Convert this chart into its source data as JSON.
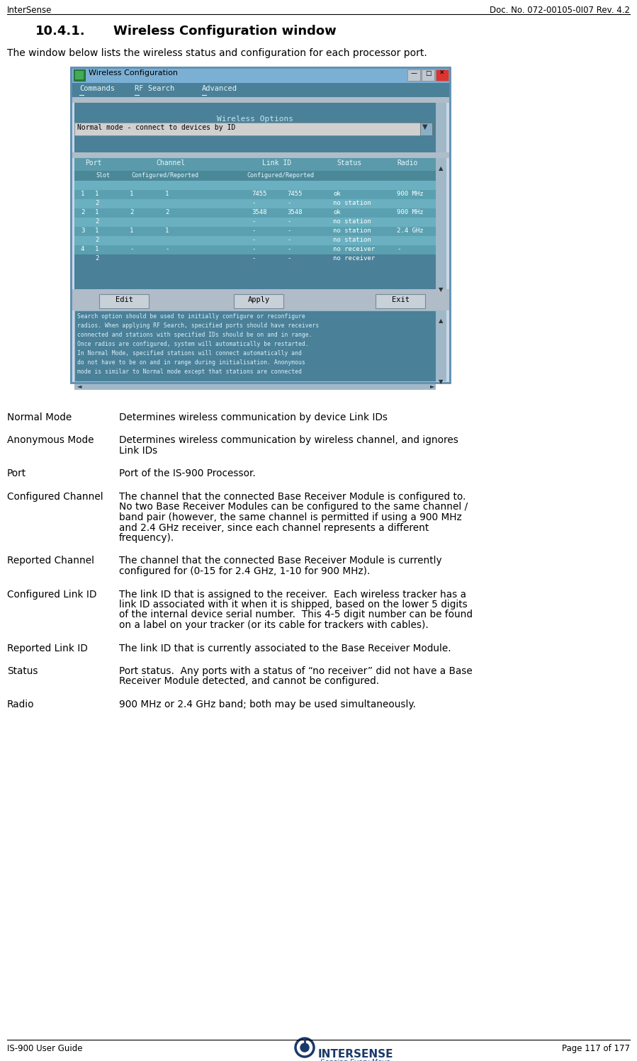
{
  "header_left": "InterSense",
  "header_right": "Doc. No. 072-00105-0I07 Rev. 4.2",
  "footer_left": "IS-900 User Guide",
  "footer_right": "Page 117 of 177",
  "bg_color": "#ffffff",
  "section_num": "10.4.1.",
  "section_title": "Wireless Configuration window",
  "intro_text": "The window below lists the wireless status and configuration for each processor port.",
  "terms": [
    {
      "term": "Normal Mode",
      "definition": "Determines wireless communication by device Link IDs"
    },
    {
      "term": "Anonymous Mode",
      "definition": "Determines wireless communication by wireless channel, and ignores\nLink IDs"
    },
    {
      "term": "Port",
      "definition": "Port of the IS-900 Processor."
    },
    {
      "term": "Configured Channel",
      "definition": "The channel that the connected Base Receiver Module is configured to.\nNo two Base Receiver Modules can be configured to the same channel /\nband pair (however, the same channel is permitted if using a 900 MHz\nand 2.4 GHz receiver, since each channel represents a different\nfrequency)."
    },
    {
      "term": "Reported Channel",
      "definition": "The channel that the connected Base Receiver Module is currently\nconfigured for (0-15 for 2.4 GHz, 1-10 for 900 MHz)."
    },
    {
      "term": "Configured Link ID",
      "definition": "The link ID that is assigned to the receiver.  Each wireless tracker has a\nlink ID associated with it when it is shipped, based on the lower 5 digits\nof the internal device serial number.  This 4-5 digit number can be found\non a label on your tracker (or its cable for trackers with cables)."
    },
    {
      "term": "Reported Link ID",
      "definition": "The link ID that is currently associated to the Base Receiver Module."
    },
    {
      "term": "Status",
      "definition": "Port status.  Any ports with a status of “no receiver” did not have a Base\nReceiver Module detected, and cannot be configured."
    },
    {
      "term": "Radio",
      "definition": "900 MHz or 2.4 GHz band; both may be used simultaneously."
    }
  ],
  "window_title": "Wireless Configuration",
  "menu_items": [
    "Commands",
    "RF Search",
    "Advanced"
  ],
  "wireless_options_label": "Wireless Options",
  "mode_text": "Normal mode - connect to devices by ID",
  "table_rows": [
    [
      "1",
      "1",
      "1",
      "1",
      "7455",
      "7455",
      "ok",
      "900 MHz"
    ],
    [
      "",
      "2",
      "",
      "",
      "-",
      "-",
      "no station",
      ""
    ],
    [
      "2",
      "1",
      "2",
      "2",
      "3548",
      "3548",
      "ok",
      "900 MHz"
    ],
    [
      "",
      "2",
      "",
      "",
      "-",
      "-",
      "no station",
      ""
    ],
    [
      "3",
      "1",
      "1",
      "1",
      "-",
      "-",
      "no station",
      "2.4 GHz"
    ],
    [
      "",
      "2",
      "",
      "",
      "-",
      "-",
      "no station",
      ""
    ],
    [
      "4",
      "1",
      "-",
      "-",
      "-",
      "-",
      "no receiver",
      "-"
    ],
    [
      "",
      "2",
      "",
      "",
      "-",
      "-",
      "no receiver",
      ""
    ]
  ],
  "button_labels": [
    "Edit",
    "Apply",
    "Exit"
  ],
  "note_text": "Search option should be used to initially configure or reconfigure\nradios. When applying RF Search, specified ports should have receivers\nconnected and stations with specified IDs should be on and in range.\nOnce radios are configured, system will automatically be restarted.\nIn Normal Mode, specified stations will connect automatically and\ndo not have to be on and in range during initialisation. Anonymous\nmode is similar to Normal mode except that stations are connected",
  "win_outer_bg": "#c8d8e8",
  "win_titlebar_bg": "#7bafd4",
  "win_menu_bg": "#4a8098",
  "win_content_bg": "#b0c4d0",
  "win_options_bg": "#4a8098",
  "win_dropdown_bg": "#d0d0d0",
  "win_table_bg": "#4a8098",
  "win_table_header_bg": "#5a9aaa",
  "win_row_odd": "#6ab0c0",
  "win_row_even": "#5aa0b0",
  "win_note_bg": "#4a8098",
  "win_note_border": "#c0c8d0",
  "win_button_bg": "#c8d0d8",
  "win_scrollbar_bg": "#a0b8c8",
  "teal_text": "#e8f8ff",
  "white_text": "#ffffff",
  "dark_text": "#000000",
  "mono_color": "#e8f8f8"
}
